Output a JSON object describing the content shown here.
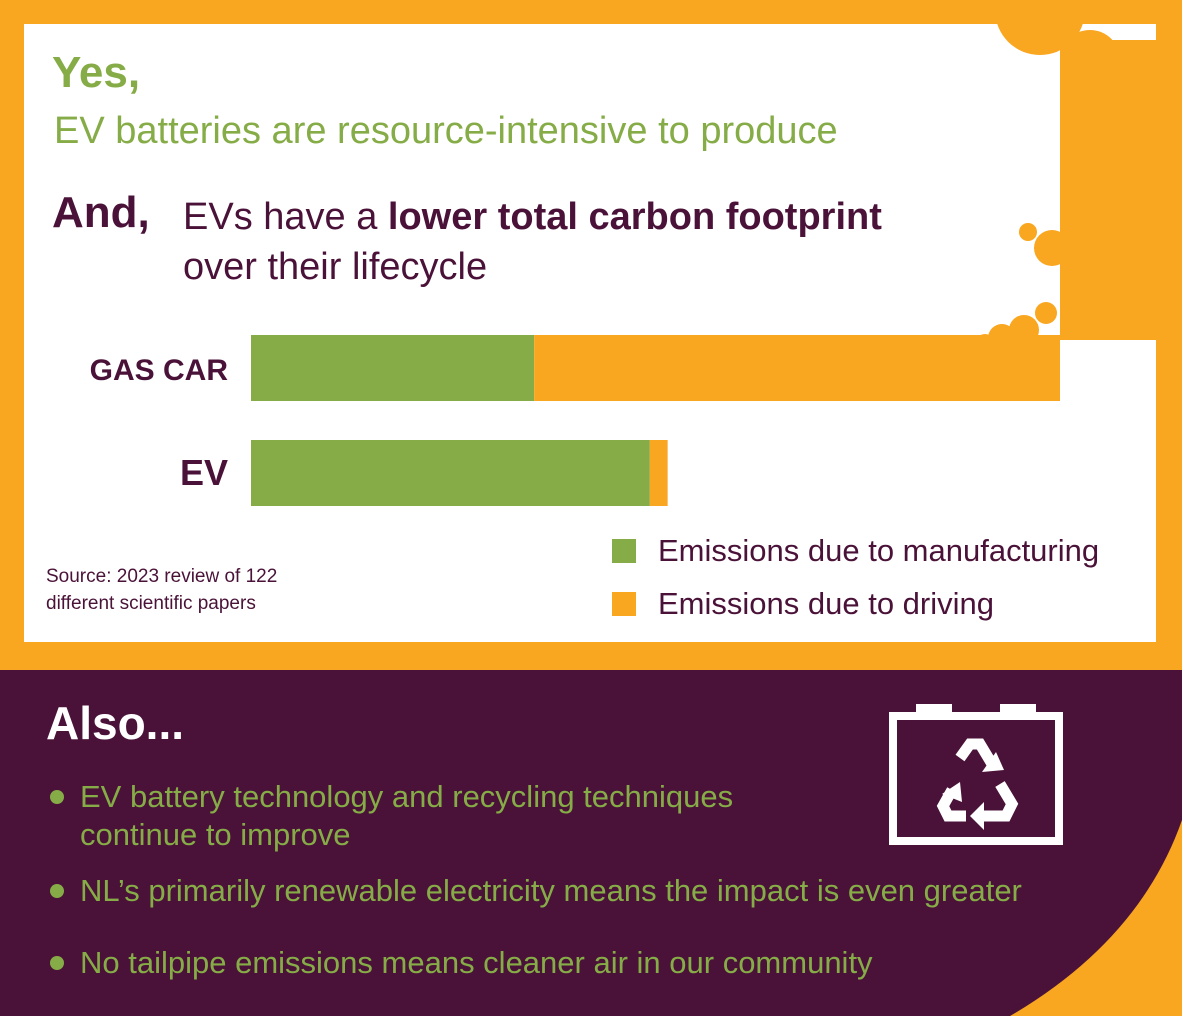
{
  "header": {
    "yes": "Yes,",
    "subtitle": "EV batteries are resource-intensive to produce",
    "and": "And,",
    "claim_pre": "EVs have a ",
    "claim_bold": "lower total carbon footprint",
    "claim_line2": "over their lifecycle"
  },
  "chart_data": {
    "type": "bar",
    "orientation": "horizontal",
    "stacked": true,
    "categories": [
      "GAS CAR",
      "EV"
    ],
    "series": [
      {
        "name": "Emissions due to manufacturing",
        "values": [
          35,
          49.3
        ],
        "color": "#86ac47"
      },
      {
        "name": "Emissions due to driving",
        "values": [
          65,
          2.2
        ],
        "color": "#f9a620"
      }
    ],
    "xlim": [
      0,
      100
    ],
    "grid": false,
    "legend_position": "bottom-right"
  },
  "source": {
    "line1": "Source: 2023 review of 122",
    "line2": "different scientific papers"
  },
  "also": {
    "title": "Also...",
    "bullets": [
      "EV battery technology and recycling techniques",
      "continue to improve",
      "NL’s primarily renewable electricity means the impact is even greater",
      "No tailpipe emissions means cleaner air in our community"
    ],
    "icon": "battery-recycle-icon"
  },
  "colors": {
    "orange": "#f9a620",
    "green": "#86ac47",
    "purple": "#4a1238",
    "white": "#ffffff"
  }
}
